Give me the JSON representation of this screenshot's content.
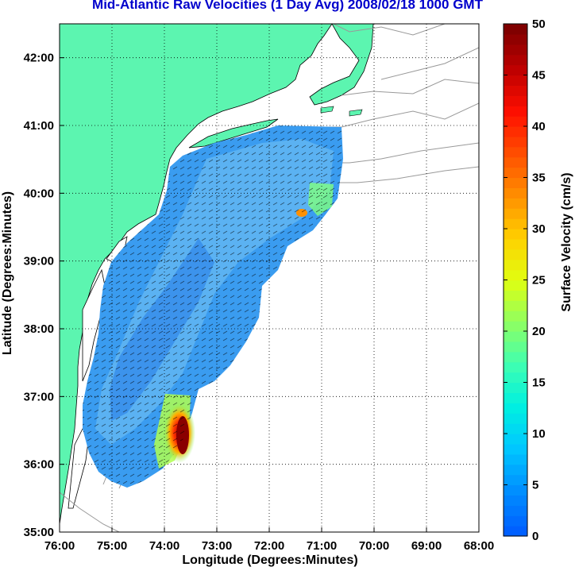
{
  "title": "Mid-Atlantic Raw Velocities (1 Day Avg) 2008/02/18 1000 GMT",
  "xlabel": "Longitude (Degrees:Minutes)",
  "ylabel": "Latitude (Degrees:Minutes)",
  "x_ticks": [
    "76:00",
    "75:00",
    "74:00",
    "73:00",
    "72:00",
    "71:00",
    "70:00",
    "69:00",
    "68:00"
  ],
  "y_ticks": [
    "35:00",
    "36:00",
    "37:00",
    "38:00",
    "39:00",
    "40:00",
    "41:00",
    "42:00"
  ],
  "colorbar": {
    "label": "Surface Velocity (cm/s)",
    "ticks": [
      "0",
      "5",
      "10",
      "15",
      "20",
      "25",
      "30",
      "35",
      "40",
      "45",
      "50"
    ],
    "colors": [
      "#0060ff",
      "#0090ff",
      "#00c8ff",
      "#00f0e0",
      "#40ffb0",
      "#90ff60",
      "#e0ff10",
      "#ffd000",
      "#ff9000",
      "#ff5000",
      "#ff1000",
      "#c00000",
      "#800000"
    ]
  },
  "colors": {
    "land": "#5cf5b0",
    "water": "#ffffff",
    "title": "#0000cc",
    "coast": "#000000",
    "bathy": "#999999"
  },
  "map": {
    "lon_range": [
      -76,
      -68
    ],
    "lat_range": [
      35,
      42.5
    ],
    "grid": "dotted"
  }
}
